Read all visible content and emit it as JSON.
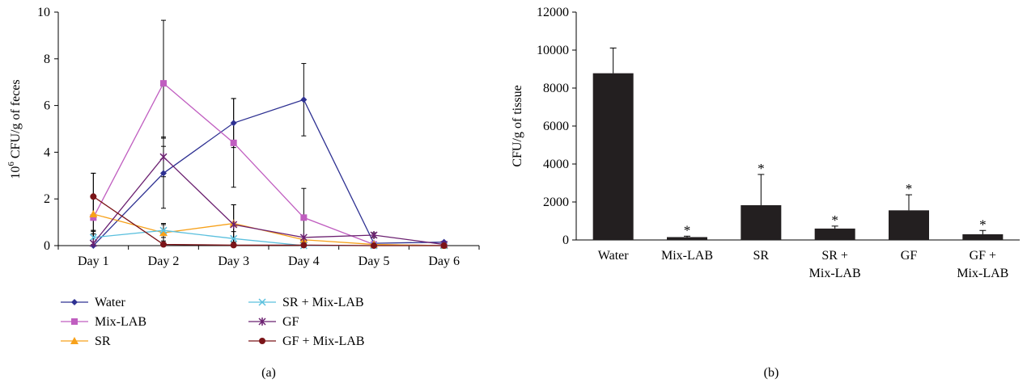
{
  "chart_data": [
    {
      "id": "a",
      "type": "line",
      "panel_label": "(a)",
      "ylabel_power": "6",
      "ylabel_rest": " CFU/g of feces",
      "ylabel_base": "10",
      "ylim": [
        0,
        10
      ],
      "yticks": [
        0,
        2,
        4,
        6,
        8,
        10
      ],
      "categories": [
        "Day 1",
        "Day 2",
        "Day 3",
        "Day 4",
        "Day 5",
        "Day 6"
      ],
      "legend_position": "bottom",
      "series": [
        {
          "name": "Water",
          "color": "#2e3192",
          "marker": "diamond",
          "values": [
            0.0,
            3.1,
            5.25,
            6.25,
            0.1,
            0.15
          ],
          "errors": [
            0.5,
            1.5,
            1.05,
            1.55,
            0.0,
            0.0
          ]
        },
        {
          "name": "Mix-LAB",
          "color": "#c05ec0",
          "marker": "square",
          "values": [
            1.2,
            6.95,
            4.4,
            1.2,
            0.05,
            0.0
          ],
          "errors": [
            1.9,
            2.7,
            1.9,
            1.25,
            0.0,
            0.0
          ]
        },
        {
          "name": "SR",
          "color": "#f7a11a",
          "marker": "triangle",
          "values": [
            1.35,
            0.55,
            0.95,
            0.25,
            0.05,
            0.0
          ],
          "errors": [
            0.7,
            0.35,
            0.8,
            0.0,
            0.0,
            0.0
          ]
        },
        {
          "name": "SR + Mix-LAB",
          "color": "#5bc0de",
          "marker": "x",
          "values": [
            0.35,
            0.65,
            0.3,
            0.0,
            0.0,
            0.0
          ],
          "errors": [
            0.3,
            0.3,
            0.3,
            0.0,
            0.0,
            0.0
          ]
        },
        {
          "name": "GF",
          "color": "#6b2070",
          "marker": "star",
          "values": [
            0.1,
            3.8,
            0.9,
            0.35,
            0.45,
            0.05
          ],
          "errors": [
            0.5,
            0.85,
            0.85,
            0.0,
            0.1,
            0.0
          ]
        },
        {
          "name": "GF + Mix-LAB",
          "color": "#7b1418",
          "marker": "circle",
          "values": [
            2.1,
            0.05,
            0.02,
            0.02,
            0.0,
            0.0
          ],
          "errors": [
            1.0,
            0.0,
            0.0,
            0.0,
            0.0,
            0.0
          ]
        }
      ]
    },
    {
      "id": "b",
      "type": "bar",
      "panel_label": "(b)",
      "ylabel": "CFU/g of tissue",
      "ylim": [
        0,
        12000
      ],
      "yticks": [
        0,
        2000,
        4000,
        6000,
        8000,
        10000,
        12000
      ],
      "categories": [
        [
          "Water"
        ],
        [
          "Mix-LAB"
        ],
        [
          "SR"
        ],
        [
          "SR +",
          "Mix-LAB"
        ],
        [
          "GF"
        ],
        [
          "GF +",
          "Mix-LAB"
        ]
      ],
      "values": [
        8780,
        150,
        1830,
        600,
        1560,
        300
      ],
      "errors": [
        1330,
        50,
        1620,
        130,
        820,
        200
      ],
      "significance": [
        "",
        "*",
        "*",
        "*",
        "*",
        "*"
      ],
      "bar_color": "#231f20"
    }
  ]
}
